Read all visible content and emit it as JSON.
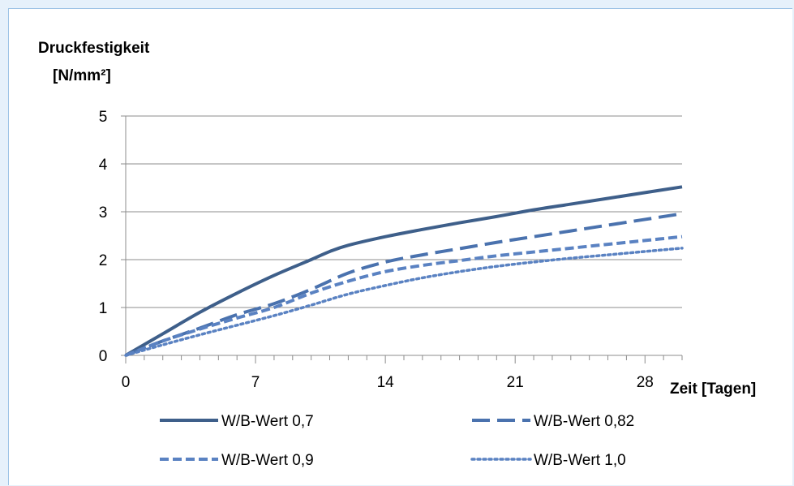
{
  "chart_data": {
    "type": "line",
    "ylabel": [
      "Druckfestigkeit",
      "[N/mm²]"
    ],
    "xlabel": "Zeit [Tagen]",
    "xlim": [
      0,
      30
    ],
    "ylim": [
      0,
      5
    ],
    "x_ticks": [
      0,
      7,
      14,
      21,
      28
    ],
    "y_ticks": [
      0,
      1,
      2,
      3,
      4,
      5
    ],
    "grid": "horizontal",
    "legend_position": "bottom",
    "series": [
      {
        "name": "W/B-Wert 0,7",
        "style": "solid",
        "color": "#3e5f8a",
        "x": [
          0,
          2,
          4,
          6,
          8,
          10,
          11,
          12,
          14,
          16,
          18,
          20,
          22,
          24,
          26,
          28,
          30
        ],
        "y": [
          0,
          0.45,
          0.9,
          1.3,
          1.67,
          2.0,
          2.17,
          2.3,
          2.48,
          2.63,
          2.77,
          2.9,
          3.04,
          3.16,
          3.28,
          3.4,
          3.52
        ]
      },
      {
        "name": "W/B-Wert 0,82",
        "style": "longdash",
        "color": "#4a72ae",
        "x": [
          0,
          2,
          4,
          6,
          8,
          10,
          12,
          14,
          16,
          18,
          20,
          22,
          24,
          26,
          28,
          30
        ],
        "y": [
          0,
          0.3,
          0.57,
          0.85,
          1.08,
          1.38,
          1.72,
          1.95,
          2.1,
          2.23,
          2.36,
          2.48,
          2.6,
          2.72,
          2.84,
          2.96
        ]
      },
      {
        "name": "W/B-Wert 0,9",
        "style": "dash",
        "color": "#5a82c2",
        "x": [
          0,
          2,
          4,
          6,
          8,
          10,
          12,
          14,
          16,
          18,
          20,
          22,
          24,
          26,
          28,
          30
        ],
        "y": [
          0,
          0.3,
          0.55,
          0.78,
          1.0,
          1.3,
          1.55,
          1.75,
          1.88,
          1.98,
          2.08,
          2.16,
          2.24,
          2.32,
          2.4,
          2.48
        ]
      },
      {
        "name": "W/B-Wert 1,0",
        "style": "dot",
        "color": "#5a82c2",
        "x": [
          0,
          2,
          4,
          6,
          8,
          10,
          12,
          14,
          16,
          18,
          20,
          22,
          24,
          26,
          28,
          30
        ],
        "y": [
          0,
          0.22,
          0.43,
          0.63,
          0.83,
          1.05,
          1.28,
          1.46,
          1.62,
          1.75,
          1.86,
          1.95,
          2.03,
          2.1,
          2.17,
          2.24
        ]
      }
    ]
  }
}
